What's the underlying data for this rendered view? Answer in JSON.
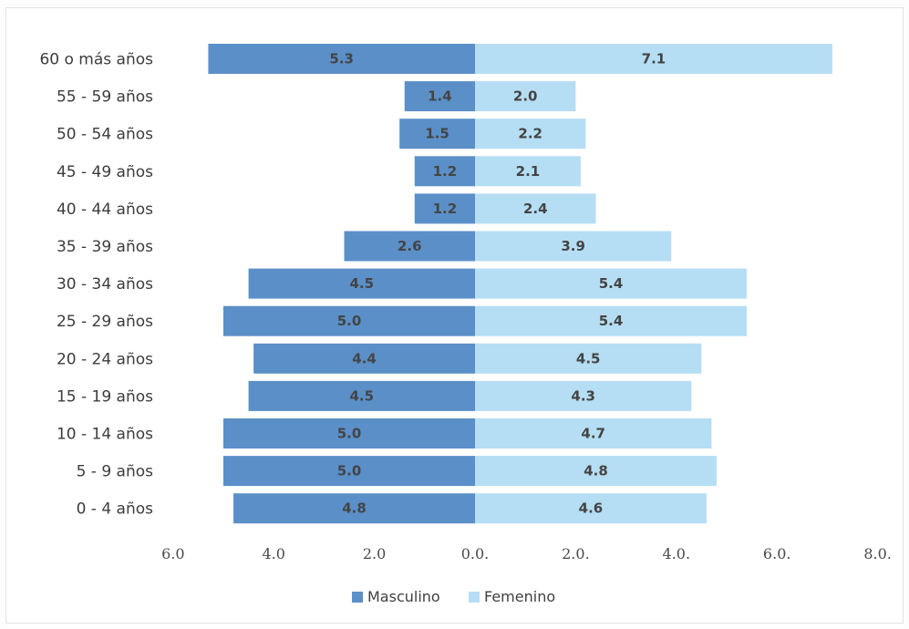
{
  "chart_data": {
    "type": "bar",
    "orientation": "horizontal-pyramid",
    "categories": [
      "60  o más años",
      "55 - 59 años",
      "50 - 54 años",
      "45 - 49 años",
      "40 - 44 años",
      "35 - 39 años",
      "30 - 34 años",
      "25 - 29 años",
      "20 - 24 años",
      "15 - 19 años",
      "10 - 14 años",
      "5 - 9 años",
      "0 - 4 años"
    ],
    "series": [
      {
        "name": "Masculino",
        "values": [
          5.3,
          1.4,
          1.5,
          1.2,
          1.2,
          2.6,
          4.5,
          5.0,
          4.4,
          4.5,
          5.0,
          5.0,
          4.8
        ],
        "labels": [
          "5.3",
          "1.4",
          "1.5",
          "1.2",
          "1.2",
          "2.6",
          "4.5",
          "5.0",
          "4.4",
          "4.5",
          "5.0",
          "5.0",
          "4.8"
        ],
        "color": "#5b8fc8"
      },
      {
        "name": "Femenino",
        "values": [
          7.1,
          2.0,
          2.2,
          2.1,
          2.4,
          3.9,
          5.4,
          5.4,
          4.5,
          4.3,
          4.7,
          4.8,
          4.6
        ],
        "labels": [
          "7.1",
          "2.0",
          "2.2",
          "2.1",
          "2.4",
          "3.9",
          "5.4",
          "5.4",
          "4.5",
          "4.3",
          "4.7",
          "4.8",
          "4.6"
        ],
        "color": "#b5def4"
      }
    ],
    "xticks": [
      {
        "value": -6,
        "label": "6.0"
      },
      {
        "value": -4,
        "label": "4.0"
      },
      {
        "value": -2,
        "label": "2.0"
      },
      {
        "value": 0,
        "label": "0.0."
      },
      {
        "value": 2,
        "label": "2.0."
      },
      {
        "value": 4,
        "label": "4.0."
      },
      {
        "value": 6,
        "label": "6.0."
      },
      {
        "value": 8,
        "label": "8.0."
      }
    ],
    "xlim": [
      -6,
      8
    ],
    "grid": false,
    "legend": {
      "position": "bottom",
      "items": [
        "Masculino",
        "Femenino"
      ]
    }
  }
}
